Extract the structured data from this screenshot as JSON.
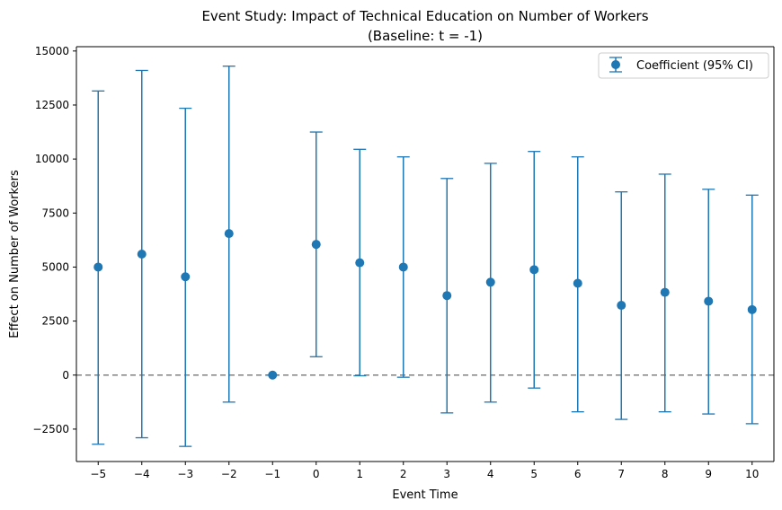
{
  "chart_data": {
    "type": "scatter",
    "title_line1": "Event Study: Impact of Technical Education on Number of Workers",
    "title_line2": "(Baseline: t = -1)",
    "xlabel": "Event Time",
    "ylabel": "Effect on Number of Workers",
    "xlim": [
      -5.5,
      10.5
    ],
    "ylim": [
      -4000,
      15200
    ],
    "x_ticks": [
      -5,
      -4,
      -3,
      -2,
      -1,
      0,
      1,
      2,
      3,
      4,
      5,
      6,
      7,
      8,
      9,
      10
    ],
    "x_tick_labels": [
      "−5",
      "−4",
      "−3",
      "−2",
      "−1",
      "0",
      "1",
      "2",
      "3",
      "4",
      "5",
      "6",
      "7",
      "8",
      "9",
      "10"
    ],
    "y_ticks": [
      -2500,
      0,
      2500,
      5000,
      7500,
      10000,
      12500,
      15000
    ],
    "y_tick_labels": [
      "−2500",
      "0",
      "2500",
      "5000",
      "7500",
      "10000",
      "12500",
      "15000"
    ],
    "reference_line_y": 0,
    "grid": false,
    "legend_position": "top-right",
    "colors": {
      "series": "#1f77b4",
      "reference_line": "#808080",
      "axes": "#000000"
    },
    "series": [
      {
        "name": "Coefficient (95% CI)",
        "x": [
          -5,
          -4,
          -3,
          -2,
          -1,
          0,
          1,
          2,
          3,
          4,
          5,
          6,
          7,
          8,
          9,
          10
        ],
        "y": [
          5000,
          5600,
          4550,
          6550,
          0,
          6050,
          5200,
          5000,
          3680,
          4300,
          4880,
          4250,
          3230,
          3830,
          3420,
          3030
        ],
        "ci_low": [
          -3200,
          -2900,
          -3300,
          -1250,
          0,
          850,
          -30,
          -100,
          -1750,
          -1250,
          -600,
          -1700,
          -2050,
          -1700,
          -1800,
          -2250
        ],
        "ci_high": [
          13150,
          14100,
          12350,
          14300,
          0,
          11250,
          10450,
          10100,
          9100,
          9800,
          10350,
          10100,
          8480,
          9300,
          8600,
          8330
        ]
      }
    ]
  }
}
